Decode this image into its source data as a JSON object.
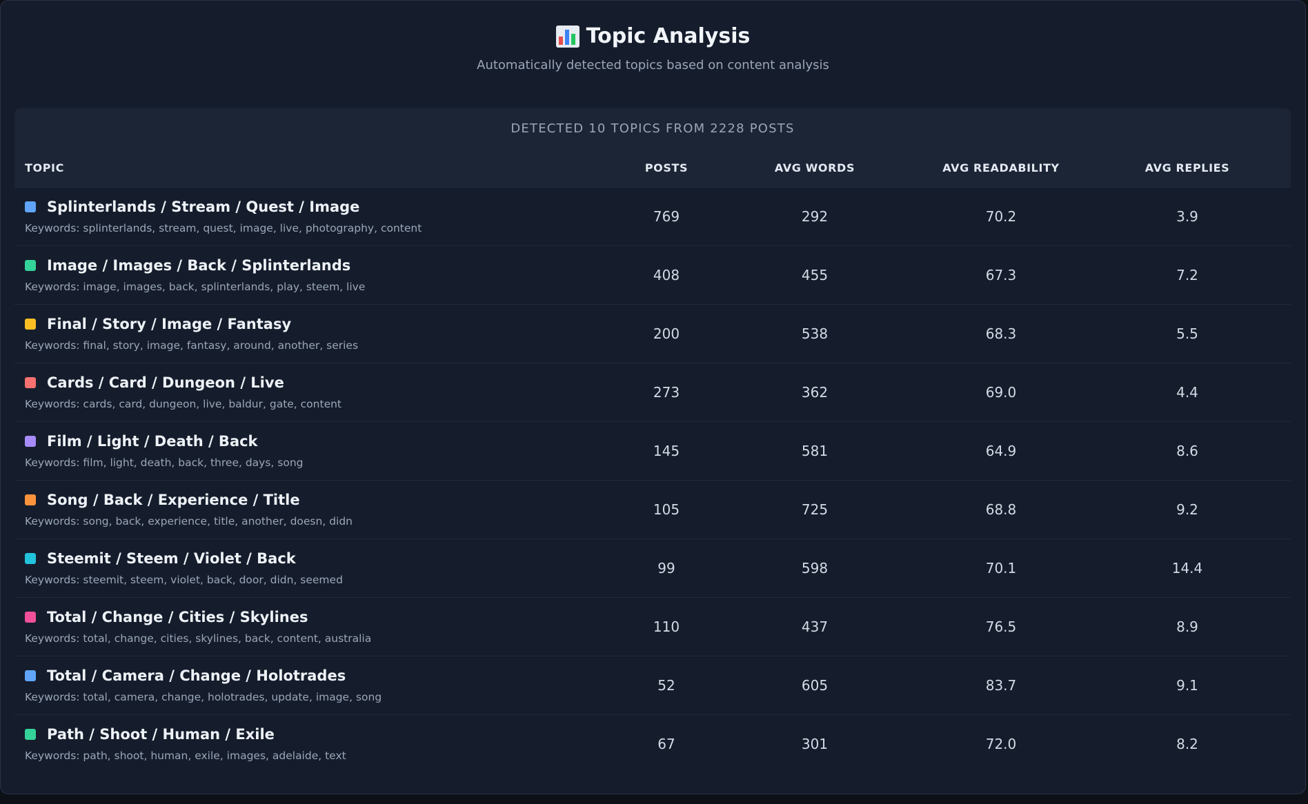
{
  "header": {
    "title": "Topic Analysis",
    "subtitle": "Automatically detected topics based on content analysis"
  },
  "summary": "DETECTED 10 TOPICS FROM 2228 POSTS",
  "columns": {
    "topic": "TOPIC",
    "posts": "POSTS",
    "avg_words": "AVG WORDS",
    "avg_readability": "AVG READABILITY",
    "avg_replies": "AVG REPLIES"
  },
  "icon_colors": [
    "#e54d4d",
    "#3b82f6",
    "#22c55e"
  ],
  "topics": [
    {
      "name": "Splinterlands / Stream / Quest / Image",
      "keywords": "Keywords: splinterlands, stream, quest, image, live, photography, content",
      "color": "#60a5fa",
      "posts": "769",
      "avg_words": "292",
      "avg_readability": "70.2",
      "avg_replies": "3.9"
    },
    {
      "name": "Image / Images / Back / Splinterlands",
      "keywords": "Keywords: image, images, back, splinterlands, play, steem, live",
      "color": "#34d399",
      "posts": "408",
      "avg_words": "455",
      "avg_readability": "67.3",
      "avg_replies": "7.2"
    },
    {
      "name": "Final / Story / Image / Fantasy",
      "keywords": "Keywords: final, story, image, fantasy, around, another, series",
      "color": "#fbbf24",
      "posts": "200",
      "avg_words": "538",
      "avg_readability": "68.3",
      "avg_replies": "5.5"
    },
    {
      "name": "Cards / Card / Dungeon / Live",
      "keywords": "Keywords: cards, card, dungeon, live, baldur, gate, content",
      "color": "#f87171",
      "posts": "273",
      "avg_words": "362",
      "avg_readability": "69.0",
      "avg_replies": "4.4"
    },
    {
      "name": "Film / Light / Death / Back",
      "keywords": "Keywords: film, light, death, back, three, days, song",
      "color": "#a78bfa",
      "posts": "145",
      "avg_words": "581",
      "avg_readability": "64.9",
      "avg_replies": "8.6"
    },
    {
      "name": "Song / Back / Experience / Title",
      "keywords": "Keywords: song, back, experience, title, another, doesn, didn",
      "color": "#fb923c",
      "posts": "105",
      "avg_words": "725",
      "avg_readability": "68.8",
      "avg_replies": "9.2"
    },
    {
      "name": "Steemit / Steem / Violet / Back",
      "keywords": "Keywords: steemit, steem, violet, back, door, didn, seemed",
      "color": "#22c3dc",
      "posts": "99",
      "avg_words": "598",
      "avg_readability": "70.1",
      "avg_replies": "14.4"
    },
    {
      "name": "Total / Change / Cities / Skylines",
      "keywords": "Keywords: total, change, cities, skylines, back, content, australia",
      "color": "#f0509a",
      "posts": "110",
      "avg_words": "437",
      "avg_readability": "76.5",
      "avg_replies": "8.9"
    },
    {
      "name": "Total / Camera / Change / Holotrades",
      "keywords": "Keywords: total, camera, change, holotrades, update, image, song",
      "color": "#60a5fa",
      "posts": "52",
      "avg_words": "605",
      "avg_readability": "83.7",
      "avg_replies": "9.1"
    },
    {
      "name": "Path / Shoot / Human / Exile",
      "keywords": "Keywords: path, shoot, human, exile, images, adelaide, text",
      "color": "#34d399",
      "posts": "67",
      "avg_words": "301",
      "avg_readability": "72.0",
      "avg_replies": "8.2"
    }
  ]
}
